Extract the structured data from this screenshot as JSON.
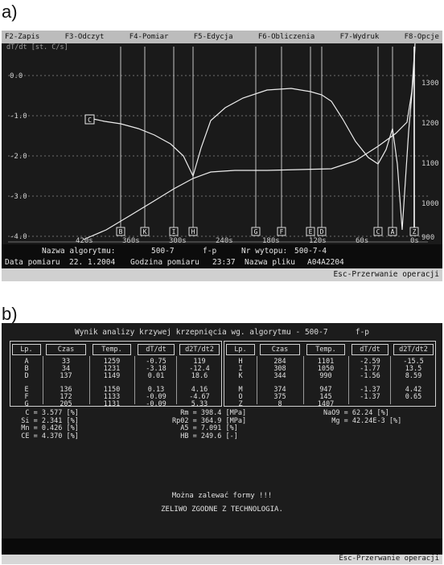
{
  "panel_labels": {
    "a": "a)",
    "b": "b)"
  },
  "screen_a": {
    "menu": [
      "F2-Zapis",
      "F3-Odczyt",
      "F4-Pomiar",
      "F5-Edycja",
      "F6-Obliczenia",
      "F7-Wydruk",
      "F8-Opcje"
    ],
    "plot": {
      "axis_title": "dT/dt [st. C/s]",
      "left_ticks": [
        "0.0",
        "-1.0",
        "-2.0",
        "-3.0",
        "-4.0"
      ],
      "right_ticks": [
        "1300",
        "1200",
        "1100",
        "1000",
        "900"
      ],
      "bottom_ticks": [
        "420s",
        "360s",
        "300s",
        "240s",
        "180s",
        "120s",
        "60s",
        "0s"
      ],
      "point_markers": [
        "B",
        "K",
        "I",
        "H",
        "G",
        "F",
        "E",
        "D",
        "C",
        "A",
        "Z"
      ],
      "start_marker": "C"
    },
    "info": {
      "algorithm_label": "Nazwa algorytmu:",
      "algorithm_value": "500-7",
      "mode": "f-p",
      "heat_label": "Nr wytopu:",
      "heat_value": "500-7-4",
      "date_label": "Data pomiaru",
      "date_value": "22. 1.2004",
      "time_label": "Godzina pomiaru",
      "time_value": "23:37",
      "file_label": "Nazwa pliku",
      "file_value": "A04A2204"
    },
    "footer": "Esc-Przerwanie operacji"
  },
  "screen_b": {
    "title": "Wynik analizy krzywej krzepnięcia wg. algorytmu - 500-7      f-p",
    "headers": [
      "Lp.",
      "Czas",
      "Temp.",
      "dT/dt",
      "d2T/dt2"
    ],
    "left_rows": [
      [
        "A",
        "33",
        "1259",
        "-0.75",
        "119"
      ],
      [
        "B",
        "34",
        "1231",
        "-3.18",
        "-12.4"
      ],
      [
        "D",
        "137",
        "1149",
        "0.01",
        "18.6"
      ],
      [
        "E",
        "136",
        "1150",
        "0.13",
        "4.16"
      ],
      [
        "F",
        "172",
        "1133",
        "-0.09",
        "-4.67"
      ],
      [
        "G",
        "205",
        "1131",
        "-0.09",
        "5.33"
      ]
    ],
    "right_rows": [
      [
        "H",
        "284",
        "1101",
        "-2.59",
        "-15.5"
      ],
      [
        "I",
        "308",
        "1050",
        "-1.77",
        "13.5"
      ],
      [
        "K",
        "344",
        "990",
        "-1.56",
        "8.59"
      ],
      [
        "M",
        "374",
        "947",
        "-1.37",
        "4.42"
      ],
      [
        "O",
        "375",
        "145",
        "-1.37",
        "0.65"
      ],
      [
        "Z",
        "8",
        "1407",
        "",
        ""
      ]
    ],
    "composition": [
      {
        "name": "C",
        "value": "3.577",
        "unit": "[%]"
      },
      {
        "name": "Si",
        "value": "2.341",
        "unit": "[%]"
      },
      {
        "name": "Mn",
        "value": "0.426",
        "unit": "[%]"
      },
      {
        "name": "CE",
        "value": "4.370",
        "unit": "[%]"
      }
    ],
    "properties": [
      {
        "name": "Rm",
        "value": "398.4",
        "unit": "[MPa]"
      },
      {
        "name": "Rp02",
        "value": "364.9",
        "unit": "[MPa]"
      },
      {
        "name": "A5",
        "value": "7.091",
        "unit": "[%]"
      },
      {
        "name": "HB",
        "value": "249.6",
        "unit": "[-]"
      }
    ],
    "extra": [
      {
        "name": "NaO9",
        "value": "62.24",
        "unit": "[%]"
      },
      {
        "name": "Mg",
        "value": "42.24E-3",
        "unit": "[%]"
      }
    ],
    "message1": "Można zalewać formy !!!",
    "message2": "ZELIWO ZGODNE Z TECHNOLOGIA.",
    "footer": "Esc-Przerwanie operacji"
  },
  "colors": {
    "screen_bg": "#1a1a1a",
    "trace": "#ededed",
    "grid": "#9a9a9a",
    "menubar": "#bcbcbc"
  }
}
